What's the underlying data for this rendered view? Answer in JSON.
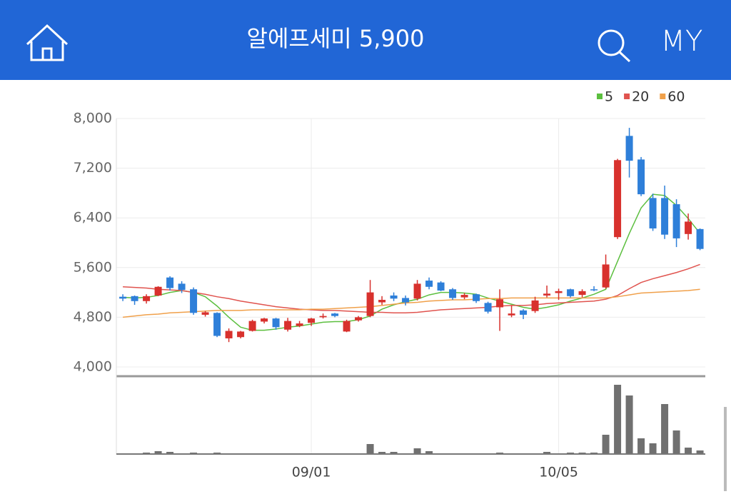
{
  "header": {
    "title": "알에프세미 5,900",
    "my": "MY"
  },
  "chart_data": {
    "type": "candlestick",
    "categories": [
      null,
      null,
      null,
      null,
      null,
      null,
      null,
      null,
      null,
      null,
      null,
      null,
      null,
      null,
      null,
      null,
      "09/01",
      null,
      null,
      null,
      null,
      null,
      null,
      null,
      null,
      null,
      null,
      null,
      null,
      null,
      null,
      null,
      null,
      null,
      null,
      null,
      null,
      "10/05",
      null,
      null,
      null,
      null,
      null,
      null,
      null,
      null,
      null,
      null,
      null,
      null
    ],
    "open": [
      5130,
      5140,
      5060,
      5150,
      5440,
      5340,
      5250,
      4840,
      4870,
      4460,
      4480,
      4580,
      4730,
      4780,
      4600,
      4660,
      4710,
      4800,
      4860,
      4570,
      4750,
      4820,
      5040,
      5150,
      5110,
      5100,
      5390,
      5360,
      5250,
      5120,
      5170,
      5030,
      4960,
      4830,
      4910,
      4900,
      5150,
      5190,
      5250,
      5160,
      5250,
      5280,
      6090,
      7720,
      7340,
      6720,
      6720,
      6620,
      6140,
      6220
    ],
    "high": [
      5170,
      5150,
      5170,
      5300,
      5460,
      5380,
      5280,
      4900,
      4880,
      4620,
      4580,
      4760,
      4790,
      4790,
      4790,
      4740,
      4790,
      4860,
      4870,
      4760,
      4820,
      5400,
      5140,
      5200,
      5150,
      5400,
      5440,
      5380,
      5270,
      5190,
      5180,
      5050,
      5250,
      4990,
      4930,
      5130,
      5310,
      5260,
      5260,
      5250,
      5300,
      5810,
      7350,
      7850,
      7380,
      6790,
      6920,
      6700,
      6470,
      6230
    ],
    "low": [
      5060,
      5000,
      5020,
      5140,
      5230,
      5190,
      4840,
      4810,
      4480,
      4400,
      4460,
      4570,
      4700,
      4600,
      4570,
      4640,
      4660,
      4780,
      4800,
      4560,
      4730,
      4800,
      5000,
      5060,
      4990,
      5070,
      5250,
      5220,
      5080,
      5090,
      5030,
      4860,
      4580,
      4800,
      4770,
      4870,
      5120,
      5080,
      5120,
      5120,
      5220,
      5260,
      6060,
      7050,
      6750,
      6190,
      6060,
      5930,
      6050,
      5880
    ],
    "close": [
      5100,
      5060,
      5140,
      5290,
      5270,
      5240,
      4870,
      4880,
      4500,
      4580,
      4570,
      4740,
      4780,
      4640,
      4740,
      4700,
      4780,
      4820,
      4820,
      4740,
      4800,
      5200,
      5080,
      5100,
      5040,
      5340,
      5290,
      5230,
      5110,
      5160,
      5060,
      4890,
      5090,
      4860,
      4840,
      5070,
      5180,
      5220,
      5140,
      5220,
      5240,
      5650,
      7330,
      7320,
      6780,
      6230,
      6130,
      6070,
      6340,
      5900
    ],
    "volume": [
      0,
      0,
      2,
      4,
      3,
      0,
      2,
      0,
      2,
      0,
      0,
      0,
      0,
      0,
      0,
      0,
      0,
      0,
      0,
      0,
      0,
      14,
      3,
      3,
      0,
      8,
      4,
      0,
      0,
      0,
      0,
      0,
      2,
      0,
      0,
      0,
      3,
      0,
      2,
      2,
      2,
      27,
      97,
      82,
      22,
      15,
      70,
      33,
      9,
      5
    ],
    "up_color": "#d8312d",
    "down_color": "#2e7fd9",
    "volume_color": "#707070",
    "series": [
      {
        "name": "5",
        "color": "#5cbf3f",
        "values": [
          5120,
          5110,
          5120,
          5150,
          5200,
          5230,
          5200,
          5130,
          4980,
          4800,
          4640,
          4590,
          4590,
          4610,
          4640,
          4660,
          4690,
          4720,
          4730,
          4730,
          4760,
          4820,
          4930,
          5000,
          5050,
          5090,
          5160,
          5200,
          5200,
          5190,
          5170,
          5110,
          5060,
          5010,
          4960,
          4930,
          4960,
          5000,
          5060,
          5110,
          5170,
          5250,
          5700,
          6150,
          6560,
          6780,
          6760,
          6600,
          6390,
          6150
        ]
      },
      {
        "name": "20",
        "color": "#e0534e",
        "values": [
          5290,
          5280,
          5270,
          5250,
          5240,
          5230,
          5200,
          5170,
          5130,
          5100,
          5060,
          5030,
          5000,
          4970,
          4950,
          4930,
          4920,
          4910,
          4910,
          4900,
          4890,
          4880,
          4880,
          4870,
          4870,
          4880,
          4900,
          4920,
          4930,
          4940,
          4950,
          4960,
          4980,
          4990,
          4990,
          5000,
          5020,
          5030,
          5040,
          5050,
          5060,
          5090,
          5150,
          5260,
          5360,
          5420,
          5470,
          5520,
          5580,
          5650
        ]
      },
      {
        "name": "60",
        "color": "#f0a04a",
        "values": [
          4800,
          4820,
          4840,
          4850,
          4870,
          4880,
          4890,
          4900,
          4910,
          4910,
          4910,
          4920,
          4920,
          4920,
          4920,
          4920,
          4930,
          4930,
          4940,
          4950,
          4960,
          4970,
          4990,
          5010,
          5030,
          5040,
          5060,
          5070,
          5080,
          5080,
          5090,
          5100,
          5100,
          5110,
          5110,
          5110,
          5110,
          5110,
          5110,
          5110,
          5110,
          5110,
          5130,
          5160,
          5190,
          5200,
          5210,
          5220,
          5230,
          5250
        ]
      }
    ],
    "ylim": [
      4000,
      8000
    ],
    "yticks": [
      {
        "value": 4000,
        "label": "4,000"
      },
      {
        "value": 4800,
        "label": "4,800"
      },
      {
        "value": 5600,
        "label": "5,600"
      },
      {
        "value": 6400,
        "label": "6,400"
      },
      {
        "value": 7200,
        "label": "7,200"
      },
      {
        "value": 8000,
        "label": "8,000"
      }
    ],
    "grid": true
  }
}
